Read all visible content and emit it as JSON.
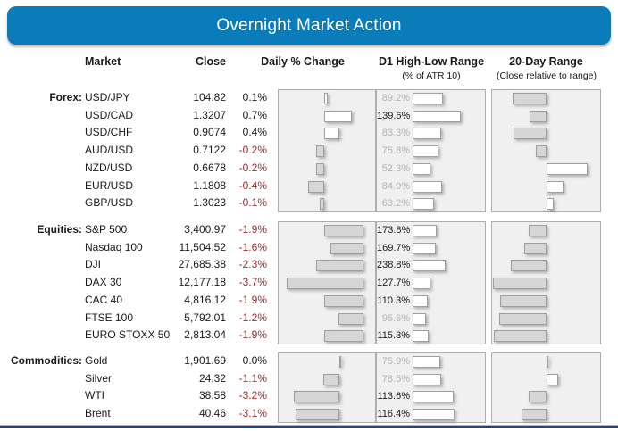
{
  "title": "Overnight Market Action",
  "columns": {
    "market": "Market",
    "close": "Close",
    "daily": "Daily % Change",
    "d1": "D1 High-Low Range",
    "d1_sub": "(% of ATR 10)",
    "range": "20-Day Range",
    "range_sub": "(Close relative to range)"
  },
  "colors": {
    "banner_blue": "#0b7cba",
    "negative_red": "#a02c2e",
    "footer_navy": "#24437e",
    "bar_gray": "#d6d6d6",
    "bar_white": "#ffffff",
    "muted_label": "#b3b3b3",
    "panel_bg": "#f0f0f0"
  },
  "chart_data": {
    "type": "table",
    "title": "Overnight Market Action",
    "description": "Market dashboard with per-row horizontal bars: daily % change, D1 high-low range as % of ATR 10, and close position within 20-day range (gray = below midpoint, white = above midpoint).",
    "groups": [
      {
        "label": "Forex:",
        "daily_xlim": [
          -1.15,
          1.3
        ],
        "d1_axis_max": 210,
        "rows": [
          {
            "market": "USD/JPY",
            "close": "104.82",
            "daily_label": "0.1%",
            "daily_pct": 0.1,
            "d1_label": "89.2%",
            "d1_pct": 89.2,
            "range_pos": -0.64
          },
          {
            "market": "USD/CAD",
            "close": "1.3207",
            "daily_label": "0.7%",
            "daily_pct": 0.7,
            "d1_label": "139.6%",
            "d1_pct": 139.6,
            "range_pos": -0.31
          },
          {
            "market": "USD/CHF",
            "close": "0.9074",
            "daily_label": "0.4%",
            "daily_pct": 0.4,
            "d1_label": "83.3%",
            "d1_pct": 83.3,
            "range_pos": -0.62
          },
          {
            "market": "AUD/USD",
            "close": "0.7122",
            "daily_label": "-0.2%",
            "daily_pct": -0.2,
            "d1_label": "75.8%",
            "d1_pct": 75.8,
            "range_pos": -0.2
          },
          {
            "market": "NZD/USD",
            "close": "0.6678",
            "daily_label": "-0.2%",
            "daily_pct": -0.2,
            "d1_label": "52.3%",
            "d1_pct": 52.3,
            "range_pos": 0.76
          },
          {
            "market": "EUR/USD",
            "close": "1.1808",
            "daily_label": "-0.4%",
            "daily_pct": -0.4,
            "d1_label": "84.9%",
            "d1_pct": 84.9,
            "range_pos": 0.31
          },
          {
            "market": "GBP/USD",
            "close": "1.3023",
            "daily_label": "-0.1%",
            "daily_pct": -0.1,
            "d1_label": "63.2%",
            "d1_pct": 63.2,
            "range_pos": 0.13
          }
        ]
      },
      {
        "label": "Equities:",
        "daily_xlim": [
          -4.1,
          0.55
        ],
        "d1_axis_max": 520,
        "rows": [
          {
            "market": "S&P 500",
            "close": "3,400.97",
            "daily_label": "-1.9%",
            "daily_pct": -1.9,
            "d1_label": "173.8%",
            "d1_pct": 173.8,
            "range_pos": -0.34
          },
          {
            "market": "Nasdaq 100",
            "close": "11,504.52",
            "daily_label": "-1.6%",
            "daily_pct": -1.6,
            "d1_label": "169.7%",
            "d1_pct": 169.7,
            "range_pos": -0.41
          },
          {
            "market": "DJI",
            "close": "27,685.38",
            "daily_label": "-2.3%",
            "daily_pct": -2.3,
            "d1_label": "238.8%",
            "d1_pct": 238.8,
            "range_pos": -0.66
          },
          {
            "market": "DAX 30",
            "close": "12,177.18",
            "daily_label": "-3.7%",
            "daily_pct": -3.7,
            "d1_label": "127.7%",
            "d1_pct": 127.7,
            "range_pos": -1.0
          },
          {
            "market": "CAC 40",
            "close": "4,816.12",
            "daily_label": "-1.9%",
            "daily_pct": -1.9,
            "d1_label": "110.3%",
            "d1_pct": 110.3,
            "range_pos": -0.86
          },
          {
            "market": "FTSE 100",
            "close": "5,792.01",
            "daily_label": "-1.2%",
            "daily_pct": -1.2,
            "d1_label": "95.6%",
            "d1_pct": 95.6,
            "range_pos": -0.89
          },
          {
            "market": "EURO STOXX 50",
            "close": "2,813.04",
            "daily_label": "-1.9%",
            "daily_pct": -1.9,
            "d1_label": "115.3%",
            "d1_pct": 115.3,
            "range_pos": -0.99
          }
        ]
      },
      {
        "label": "Commodities:",
        "daily_xlim": [
          -4.3,
          2.55
        ],
        "d1_axis_max": 200,
        "rows": [
          {
            "market": "Gold",
            "close": "1,901.69",
            "daily_label": "0.0%",
            "daily_pct": 0.0,
            "d1_label": "75.9%",
            "d1_pct": 75.9,
            "range_pos": 0.04
          },
          {
            "market": "Silver",
            "close": "24.32",
            "daily_label": "-1.1%",
            "daily_pct": -1.1,
            "d1_label": "78.5%",
            "d1_pct": 78.5,
            "range_pos": 0.21
          },
          {
            "market": "WTI",
            "close": "38.58",
            "daily_label": "-3.2%",
            "daily_pct": -3.2,
            "d1_label": "113.6%",
            "d1_pct": 113.6,
            "range_pos": -0.33
          },
          {
            "market": "Brent",
            "close": "40.46",
            "daily_label": "-3.1%",
            "daily_pct": -3.1,
            "d1_label": "116.4%",
            "d1_pct": 116.4,
            "range_pos": -0.46
          }
        ]
      }
    ]
  }
}
